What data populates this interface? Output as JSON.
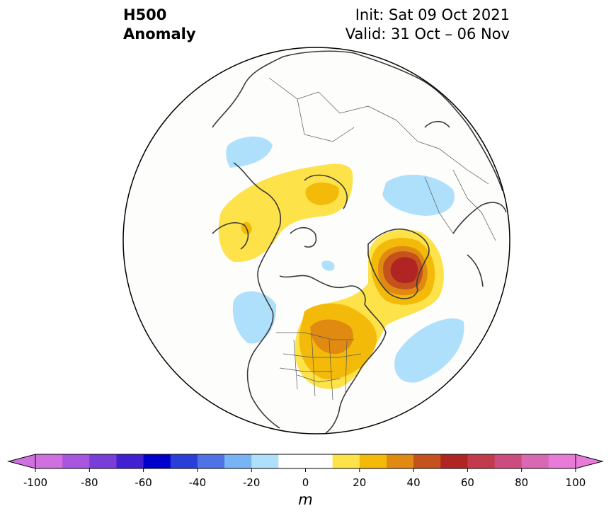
{
  "title": {
    "left_line1": "H500",
    "left_line2": "Anomaly",
    "right_line1": "Init: Sat 09 Oct 2021",
    "right_line2": "Valid: 31 Oct – 06 Nov"
  },
  "colorbar": {
    "unit_label": "m",
    "min": -100,
    "max": 100,
    "step": 10,
    "tick_labels": [
      "-100",
      "-80",
      "-60",
      "-40",
      "-20",
      "0",
      "20",
      "40",
      "60",
      "80",
      "100"
    ],
    "tick_values": [
      -100,
      -80,
      -60,
      -40,
      -20,
      0,
      20,
      40,
      60,
      80,
      100
    ],
    "colors": [
      "#d070e0",
      "#a855e0",
      "#7a3ed8",
      "#4020d0",
      "#0000cc",
      "#2a3ed8",
      "#4f72e6",
      "#78b4f4",
      "#aee0fc",
      "#ffffff",
      "#ffffff",
      "#fde24a",
      "#f4ba0a",
      "#e08a12",
      "#c4521c",
      "#b02424",
      "#c23a4c",
      "#cc4c80",
      "#d868b4",
      "#e87ad8"
    ],
    "extend": "both"
  },
  "map": {
    "projection": "north-polar-stereographic",
    "anomaly_colors": {
      "pos10": "#fde24a",
      "pos20": "#f4ba0a",
      "pos30": "#e08a12",
      "pos40": "#c4521c",
      "pos50": "#b02424",
      "neg10": "#aee0fc"
    }
  }
}
